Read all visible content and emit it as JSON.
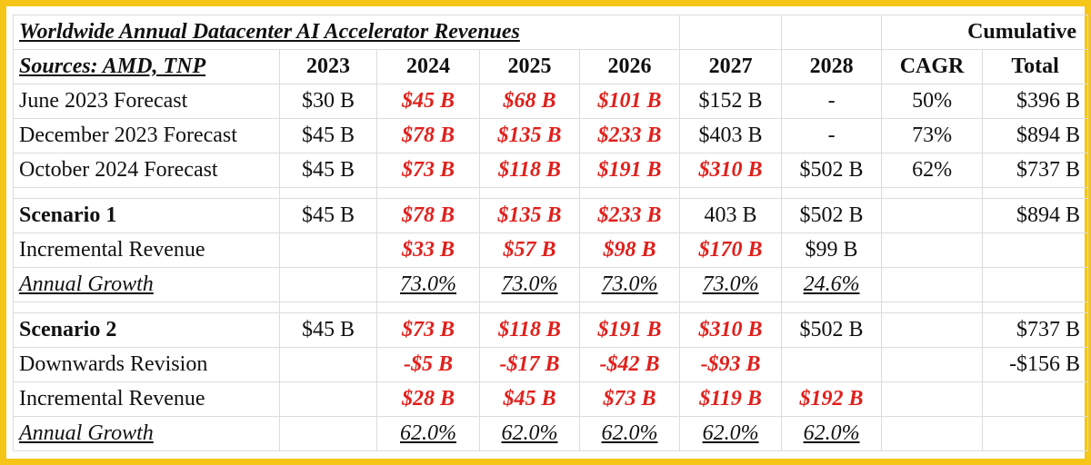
{
  "title": "Worldwide Annual Datacenter AI Accelerator Revenues",
  "sources": "Sources: AMD, TNP",
  "cumulative_label": "Cumulative",
  "headers": [
    "2023",
    "2024",
    "2025",
    "2026",
    "2027",
    "2028",
    "CAGR",
    "Total"
  ],
  "colors": {
    "frame": "#f5c518",
    "forecast_red": "#e0201c",
    "grid": "#dcdcdc"
  },
  "rows": {
    "june2023": {
      "label": "June 2023 Forecast",
      "y2023": "$30 B",
      "y2024": "$45 B",
      "y2025": "$68 B",
      "y2026": "$101 B",
      "y2027": "$152 B",
      "y2028": "-",
      "cagr": "50%",
      "total": "$396 B"
    },
    "dec2023": {
      "label": "December 2023 Forecast",
      "y2023": "$45 B",
      "y2024": "$78 B",
      "y2025": "$135 B",
      "y2026": "$233 B",
      "y2027": "$403 B",
      "y2028": "-",
      "cagr": "73%",
      "total": "$894 B"
    },
    "oct2024": {
      "label": "October 2024 Forecast",
      "y2023": "$45 B",
      "y2024": "$73 B",
      "y2025": "$118 B",
      "y2026": "$191 B",
      "y2027": "$310 B",
      "y2028": "$502 B",
      "cagr": "62%",
      "total": "$737 B"
    },
    "s1": {
      "label": "Scenario 1",
      "y2023": "$45 B",
      "y2024": "$78 B",
      "y2025": "$135 B",
      "y2026": "$233 B",
      "y2027": "403 B",
      "y2028": "$502 B",
      "total": "$894 B"
    },
    "s1_inc": {
      "label": "Incremental Revenue",
      "y2024": "$33 B",
      "y2025": "$57 B",
      "y2026": "$98 B",
      "y2027": "$170 B",
      "y2028": "$99 B"
    },
    "s1_growth": {
      "label": "Annual Growth",
      "y2024": "73.0%",
      "y2025": "73.0%",
      "y2026": "73.0%",
      "y2027": "73.0%",
      "y2028": "24.6%"
    },
    "s2": {
      "label": "Scenario 2",
      "y2023": "$45 B",
      "y2024": "$73 B",
      "y2025": "$118 B",
      "y2026": "$191 B",
      "y2027": "$310 B",
      "y2028": "$502 B",
      "total": "$737 B"
    },
    "s2_down": {
      "label": "Downwards Revision",
      "y2024": "-$5 B",
      "y2025": "-$17 B",
      "y2026": "-$42 B",
      "y2027": "-$93 B",
      "total": "-$156 B"
    },
    "s2_inc": {
      "label": "Incremental Revenue",
      "y2024": "$28 B",
      "y2025": "$45 B",
      "y2026": "$73 B",
      "y2027": "$119 B",
      "y2028": "$192 B"
    },
    "s2_growth": {
      "label": "Annual Growth",
      "y2024": "62.0%",
      "y2025": "62.0%",
      "y2026": "62.0%",
      "y2027": "62.0%",
      "y2028": "62.0%"
    }
  }
}
